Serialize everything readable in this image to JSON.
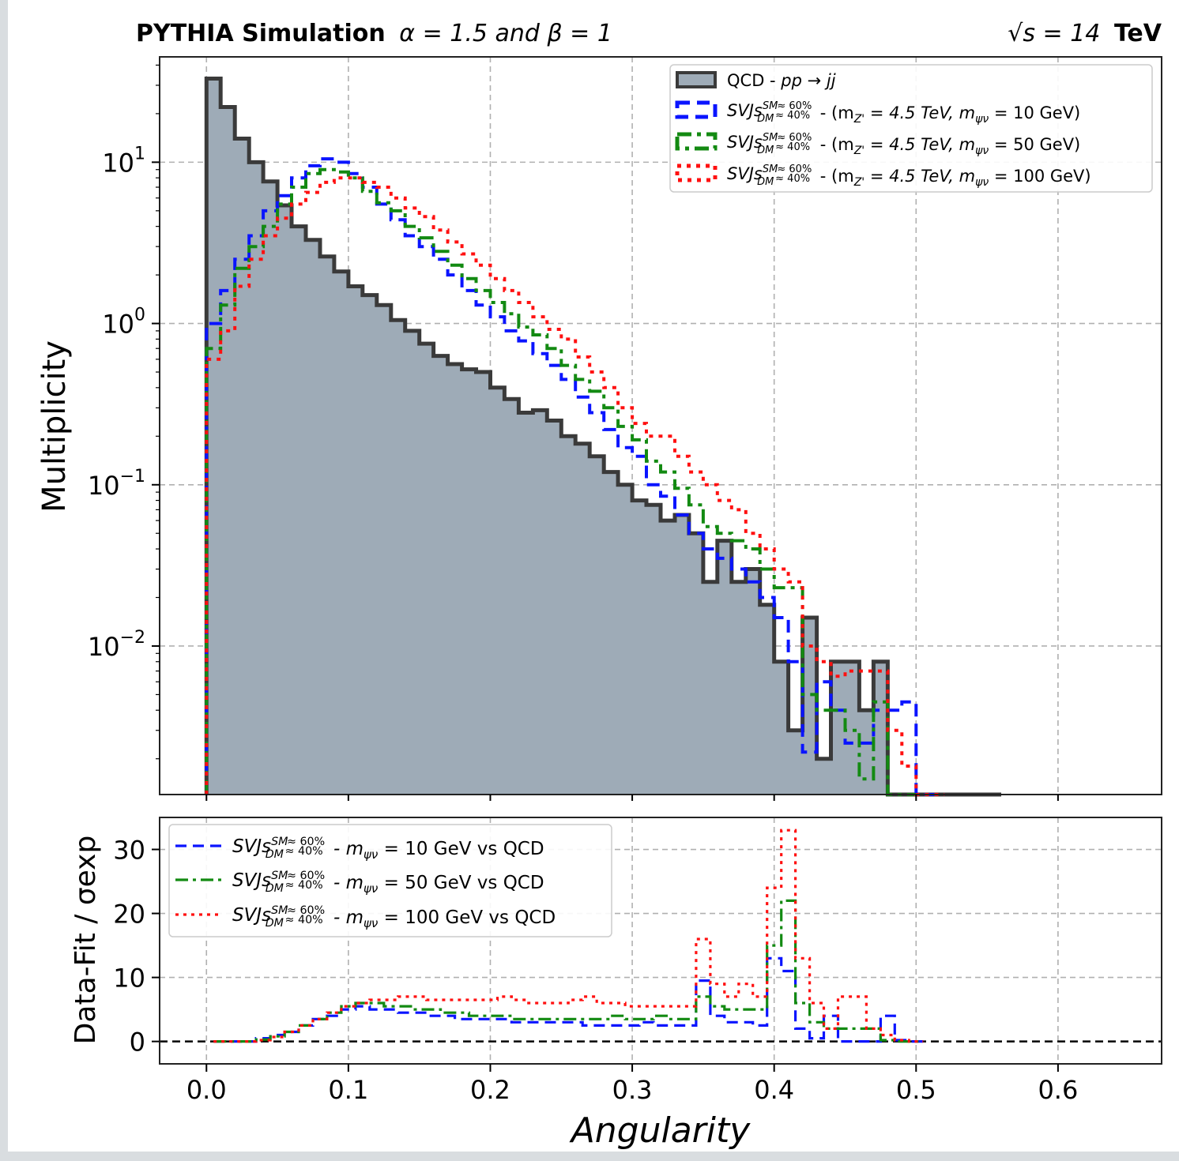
{
  "title": {
    "left_bold": "PYTHIA Simulation",
    "left_rest": "α = 1.5 and β = 1",
    "right_math": "√s = 14",
    "right_bold": "TeV"
  },
  "colors": {
    "qcd_fill": "#9eabb7",
    "qcd_edge": "#3a3a3a",
    "blue": "#0a14ff",
    "green": "#138a12",
    "red": "#ff1010"
  },
  "chart_data": [
    {
      "type": "histogram",
      "panel": "top",
      "ylabel": "Multiplicity",
      "yscale": "log",
      "ylim": [
        0.0012,
        45
      ],
      "xlim": [
        -0.033,
        0.673
      ],
      "grid": true,
      "legend_position": "upper right",
      "y_ticks": [
        "10^1",
        "10^0",
        "10^-1",
        "10^-2"
      ],
      "bin_width": 0.01,
      "x_start": 0.0,
      "series": [
        {
          "name": "QCD - pp → jj",
          "style": "filled",
          "values": [
            33,
            22,
            14,
            10,
            7.6,
            5.4,
            4.0,
            3.3,
            2.6,
            2.1,
            1.7,
            1.5,
            1.3,
            1.05,
            0.9,
            0.75,
            0.63,
            0.56,
            0.52,
            0.5,
            0.4,
            0.34,
            0.28,
            0.29,
            0.25,
            0.2,
            0.18,
            0.15,
            0.12,
            0.1,
            0.08,
            0.075,
            0.06,
            0.065,
            0.05,
            0.025,
            0.045,
            0.025,
            0.03,
            0.018,
            0.008,
            0.003,
            0.015,
            0.002,
            0.008,
            0.008,
            0.004,
            0.008,
            0.0012,
            0.0012,
            0.0012,
            0.0012,
            0.0012,
            0.0012,
            0.001,
            0.001
          ]
        },
        {
          "name": "SVJs_DM^SM ≈ 60% ≈ 40% - (m_Z' = 4.5 TeV, m_ψν = 10 GeV)",
          "style": "dashed",
          "values": [
            1.0,
            1.6,
            2.5,
            3.5,
            5.0,
            6.2,
            8.0,
            9.5,
            10.5,
            10.0,
            8.5,
            7.0,
            5.5,
            4.4,
            3.5,
            3.0,
            2.5,
            2.0,
            1.6,
            1.3,
            1.1,
            0.9,
            0.78,
            0.65,
            0.55,
            0.45,
            0.35,
            0.28,
            0.22,
            0.17,
            0.15,
            0.1,
            0.085,
            0.065,
            0.05,
            0.04,
            0.035,
            0.03,
            0.025,
            0.02,
            0.015,
            0.008,
            0.0022,
            0.006,
            0.004,
            0.0025,
            0.0025,
            0.004,
            0.004,
            0.0045,
            0.0011,
            0.0011
          ]
        },
        {
          "name": "SVJs_DM^SM ≈ 60% ≈ 40% - (m_Z' = 4.5 TeV, m_ψν = 50 GeV)",
          "style": "dashdot",
          "values": [
            0.7,
            1.3,
            2.2,
            3.0,
            4.0,
            5.5,
            7.0,
            8.5,
            9.0,
            8.7,
            8.0,
            6.6,
            5.6,
            5.0,
            4.0,
            3.4,
            2.8,
            2.3,
            1.9,
            1.6,
            1.35,
            1.15,
            0.95,
            0.85,
            0.7,
            0.55,
            0.45,
            0.38,
            0.3,
            0.23,
            0.19,
            0.14,
            0.12,
            0.095,
            0.075,
            0.055,
            0.05,
            0.045,
            0.04,
            0.03,
            0.023,
            0.023,
            0.005,
            0.004,
            0.004,
            0.003,
            0.0015,
            0.0045,
            0.0012,
            0.0012
          ]
        },
        {
          "name": "SVJs_DM^SM ≈ 60% ≈ 40% - (m_Z' = 4.5 TeV, m_ψν = 100 GeV)",
          "style": "dotted",
          "values": [
            0.6,
            0.9,
            1.7,
            2.5,
            3.5,
            4.5,
            5.5,
            6.5,
            7.5,
            8.0,
            8.0,
            7.5,
            7.0,
            6.0,
            5.2,
            4.6,
            3.8,
            3.2,
            2.7,
            2.3,
            1.9,
            1.6,
            1.35,
            1.1,
            0.92,
            0.8,
            0.62,
            0.5,
            0.4,
            0.3,
            0.24,
            0.2,
            0.2,
            0.15,
            0.12,
            0.1,
            0.08,
            0.07,
            0.05,
            0.04,
            0.03,
            0.025,
            0.01,
            0.008,
            0.0065,
            0.007,
            0.007,
            0.007,
            0.003,
            0.0018,
            0.0011,
            0.0011
          ]
        }
      ]
    },
    {
      "type": "histogram",
      "panel": "bottom",
      "ylabel": "Data-Fit / σexp",
      "xlabel": "Angularity",
      "ylim": [
        -3.5,
        35
      ],
      "xlim": [
        -0.033,
        0.673
      ],
      "grid": true,
      "legend_position": "upper left",
      "x_ticks": [
        "0.0",
        "0.1",
        "0.2",
        "0.3",
        "0.4",
        "0.5",
        "0.6"
      ],
      "y_ticks": [
        "0",
        "10",
        "20",
        "30"
      ],
      "bin_width": 0.01,
      "x_start": 0.005,
      "series": [
        {
          "name": "SVJs_DM^SM ≈ 60% ≈ 40% - m_ψν = 10 GeV vs QCD",
          "style": "dashed",
          "values": [
            0,
            0,
            0,
            0.5,
            1.0,
            1.5,
            2.5,
            3.5,
            4.0,
            5.0,
            5.5,
            5.0,
            5.0,
            4.5,
            4.5,
            4.0,
            4.0,
            3.5,
            3.5,
            3.5,
            3.5,
            3.0,
            3.0,
            3.0,
            3.0,
            3.0,
            2.5,
            2.5,
            2.5,
            2.5,
            3.0,
            2.5,
            2.5,
            2.5,
            9.5,
            4.0,
            3.0,
            3.0,
            2.5,
            13,
            11,
            2.0,
            0.5,
            4.0,
            0,
            0,
            0,
            4.0,
            0.2,
            0
          ]
        },
        {
          "name": "SVJs_DM^SM ≈ 60% ≈ 40% - m_ψν = 50 GeV vs QCD",
          "style": "dashdot",
          "values": [
            0,
            0,
            0,
            0.3,
            0.8,
            1.5,
            2.5,
            3.5,
            4.5,
            5.5,
            6.0,
            6.0,
            5.5,
            5.5,
            5.0,
            5.0,
            4.5,
            4.5,
            4.0,
            4.0,
            4.0,
            3.5,
            3.5,
            3.5,
            3.5,
            3.5,
            3.5,
            3.5,
            4.0,
            3.5,
            3.5,
            4.0,
            3.5,
            3.5,
            7.0,
            5.5,
            5.0,
            5.0,
            5.0,
            15,
            22,
            6.0,
            3.0,
            2.0,
            2.0,
            2.0,
            2.0,
            0.2,
            0,
            0
          ]
        },
        {
          "name": "SVJs_DM^SM ≈ 60% ≈ 40% - m_ψν = 100 GeV vs QCD",
          "style": "dotted",
          "values": [
            0,
            0,
            0,
            0.2,
            0.7,
            1.5,
            2.5,
            3.5,
            4.5,
            5.5,
            6.0,
            6.5,
            6.5,
            7.0,
            7.0,
            6.5,
            6.5,
            6.5,
            6.5,
            6.5,
            7.0,
            6.5,
            6.0,
            6.0,
            6.0,
            6.5,
            7.0,
            6.0,
            6.0,
            5.5,
            5.5,
            5.5,
            5.5,
            5.5,
            16,
            9.0,
            7.0,
            9.0,
            7.0,
            24,
            33,
            13,
            6.0,
            2.0,
            7.0,
            7.0,
            2.0,
            1.0,
            0.2,
            0
          ]
        }
      ]
    }
  ],
  "legend_top": [
    {
      "prefix": "QCD - ",
      "math": "pp → jj",
      "suffix": ""
    },
    {
      "prefix": "",
      "math": "SVJs",
      "suffix": " - (m",
      "sub": "Z'",
      "rest": " = 4.5 TeV,  m",
      "sub2": "ψν",
      "tail": "  =  10 GeV)"
    },
    {
      "prefix": "",
      "math": "SVJs",
      "suffix": " - (m",
      "sub": "Z'",
      "rest": " = 4.5 TeV,  m",
      "sub2": "ψν",
      "tail": "  =  50 GeV)"
    },
    {
      "prefix": "",
      "math": "SVJs",
      "suffix": " - (m",
      "sub": "Z'",
      "rest": " = 4.5 TeV,  m",
      "sub2": "ψν",
      "tail": "  =  100 GeV)"
    }
  ],
  "legend_bottom": [
    {
      "math": "SVJs",
      "rest": " - m",
      "sub": "ψν",
      "tail": "  =  10 GeV vs QCD"
    },
    {
      "math": "SVJs",
      "rest": " - m",
      "sub": "ψν",
      "tail": "  =  50 GeV vs QCD"
    },
    {
      "math": "SVJs",
      "rest": " - m",
      "sub": "ψν",
      "tail": "  =  100 GeV vs QCD"
    }
  ],
  "svjs_script": {
    "sup": "SM",
    "sub": "DM",
    "frac_top": "≈ 60%",
    "frac_bot": "≈ 40%"
  }
}
